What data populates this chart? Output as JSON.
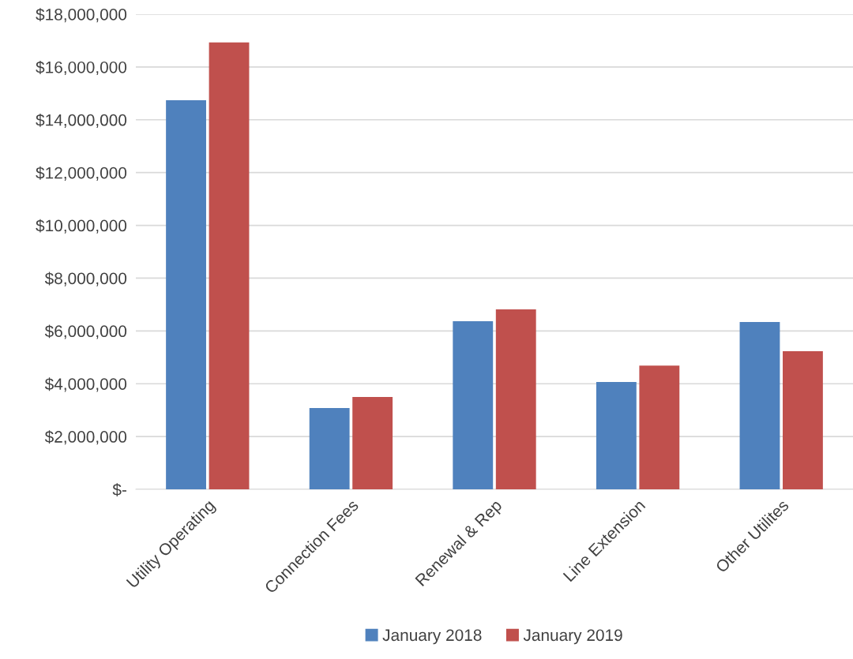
{
  "chart_data": {
    "type": "bar",
    "categories": [
      "Utility Operating",
      "Connection Fees",
      "Renewal & Rep",
      "Line Extension",
      "Other Utilites"
    ],
    "series": [
      {
        "name": "January 2018",
        "color": "#4f81bd",
        "values": [
          14740000,
          3080000,
          6370000,
          4070000,
          6340000
        ]
      },
      {
        "name": "January 2019",
        "color": "#c0504d",
        "values": [
          16930000,
          3500000,
          6820000,
          4690000,
          5230000
        ]
      }
    ],
    "ylim": [
      0,
      18000000
    ],
    "yticks": [
      {
        "value": 0,
        "label": "$-"
      },
      {
        "value": 2000000,
        "label": "$2,000,000"
      },
      {
        "value": 4000000,
        "label": "$4,000,000"
      },
      {
        "value": 6000000,
        "label": "$6,000,000"
      },
      {
        "value": 8000000,
        "label": "$8,000,000"
      },
      {
        "value": 10000000,
        "label": "$10,000,000"
      },
      {
        "value": 12000000,
        "label": "$12,000,000"
      },
      {
        "value": 14000000,
        "label": "$14,000,000"
      },
      {
        "value": 16000000,
        "label": "$16,000,000"
      },
      {
        "value": 18000000,
        "label": "$18,000,000"
      }
    ],
    "grid": "y",
    "legend": "bottom"
  }
}
